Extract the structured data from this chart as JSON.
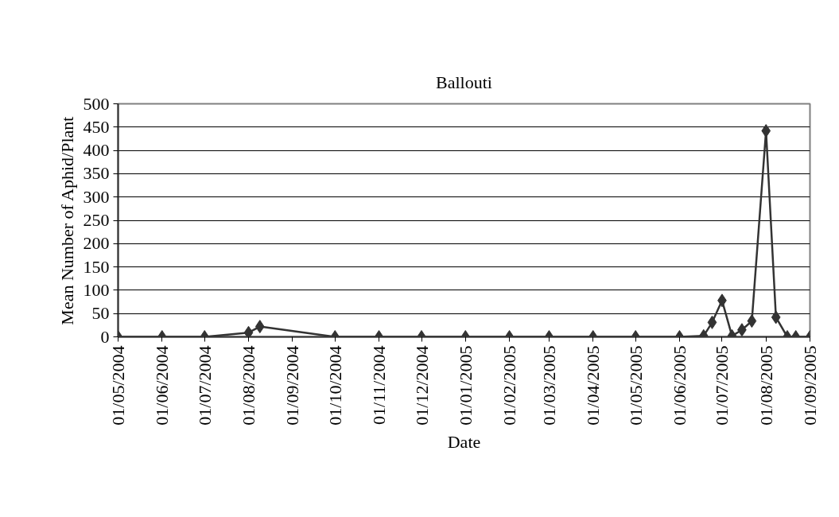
{
  "chart_data": {
    "type": "line",
    "title": "Ballouti",
    "xlabel": "Date",
    "ylabel": "Mean Number of Aphid/Plant",
    "x": [
      "2004-05-01",
      "2004-06-01",
      "2004-07-01",
      "2004-08-01",
      "2004-08-09",
      "2004-10-01",
      "2004-11-01",
      "2004-12-01",
      "2005-01-01",
      "2005-02-01",
      "2005-03-01",
      "2005-04-01",
      "2005-05-01",
      "2005-06-01",
      "2005-06-18",
      "2005-06-24",
      "2005-07-01",
      "2005-07-08",
      "2005-07-15",
      "2005-07-22",
      "2005-08-01",
      "2005-08-08",
      "2005-08-16",
      "2005-08-22",
      "2005-09-01"
    ],
    "series": [
      {
        "color": "#333333",
        "values": [
          0,
          0,
          0,
          9,
          22,
          0,
          0,
          0,
          0,
          0,
          0,
          0,
          0,
          0,
          2,
          31,
          78,
          2,
          15,
          34,
          442,
          42,
          0,
          0,
          0
        ]
      }
    ],
    "xlim": [
      "2004-05-01",
      "2005-09-01"
    ],
    "xticks": [
      {
        "value": "2004-05-01",
        "label": "01/05/2004"
      },
      {
        "value": "2004-06-01",
        "label": "01/06/2004"
      },
      {
        "value": "2004-07-01",
        "label": "01/07/2004"
      },
      {
        "value": "2004-08-01",
        "label": "01/08/2004"
      },
      {
        "value": "2004-09-01",
        "label": "01/09/2004"
      },
      {
        "value": "2004-10-01",
        "label": "01/10/2004"
      },
      {
        "value": "2004-11-01",
        "label": "01/11/2004"
      },
      {
        "value": "2004-12-01",
        "label": "01/12/2004"
      },
      {
        "value": "2005-01-01",
        "label": "01/01/2005"
      },
      {
        "value": "2005-02-01",
        "label": "01/02/2005"
      },
      {
        "value": "2005-03-01",
        "label": "01/03/2005"
      },
      {
        "value": "2005-04-01",
        "label": "01/04/2005"
      },
      {
        "value": "2005-05-01",
        "label": "01/05/2005"
      },
      {
        "value": "2005-06-01",
        "label": "01/06/2005"
      },
      {
        "value": "2005-07-01",
        "label": "01/07/2005"
      },
      {
        "value": "2005-08-01",
        "label": "01/08/2005"
      },
      {
        "value": "2005-09-01",
        "label": "01/09/2005"
      }
    ],
    "ylim": [
      0,
      500
    ],
    "yticks": [
      0,
      50,
      100,
      150,
      200,
      250,
      300,
      350,
      400,
      450,
      500
    ],
    "grid": "y",
    "marker": "diamond",
    "line_style": "solid"
  }
}
